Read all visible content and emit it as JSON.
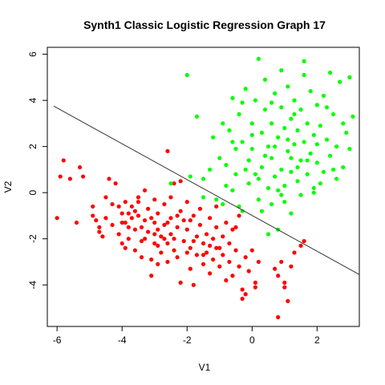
{
  "chart_data": {
    "type": "scatter",
    "title": "Synth1 Classic Logistic Regression Graph 17",
    "xlabel": "V1",
    "ylabel": "V2",
    "xlim": [
      -6.3,
      3.3
    ],
    "ylim": [
      -5.8,
      6.3
    ],
    "xticks": [
      -6,
      -4,
      -2,
      0,
      2
    ],
    "yticks": [
      -4,
      -2,
      0,
      2,
      4,
      6
    ],
    "x_tick_labels": [
      "-6",
      "-4",
      "-2",
      "0",
      "2"
    ],
    "y_tick_labels": [
      "-4",
      "-2",
      "0",
      "2",
      "4",
      "6"
    ],
    "grid": false,
    "legend": "none",
    "decision_boundary": {
      "x": [
        -6.1,
        3.3
      ],
      "y": [
        3.75,
        -3.55
      ],
      "color": "#333333"
    },
    "series": [
      {
        "color": "#ff0000",
        "points": [
          [
            -6.0,
            -1.1
          ],
          [
            -5.9,
            0.7
          ],
          [
            -5.8,
            1.4
          ],
          [
            -5.6,
            0.6
          ],
          [
            -5.4,
            -1.3
          ],
          [
            -5.3,
            1.1
          ],
          [
            -5.2,
            0.7
          ],
          [
            -4.9,
            -0.6
          ],
          [
            -4.8,
            -1.2
          ],
          [
            -4.7,
            -1.5
          ],
          [
            -4.6,
            -1.9
          ],
          [
            -4.5,
            -1.1
          ],
          [
            -4.5,
            -0.2
          ],
          [
            -4.4,
            0.6
          ],
          [
            -4.3,
            -1.4
          ],
          [
            -4.2,
            0.4
          ],
          [
            -4.1,
            -0.6
          ],
          [
            -4.1,
            -1.8
          ],
          [
            -4.0,
            -0.9
          ],
          [
            -4.0,
            -2.2
          ],
          [
            -3.9,
            -1.3
          ],
          [
            -3.9,
            -0.4
          ],
          [
            -3.8,
            -0.9
          ],
          [
            -3.8,
            -2.0
          ],
          [
            -3.7,
            -1.1
          ],
          [
            -3.7,
            -0.6
          ],
          [
            -3.6,
            -1.6
          ],
          [
            -3.6,
            -2.5
          ],
          [
            -3.5,
            -0.4
          ],
          [
            -3.5,
            -1.0
          ],
          [
            -3.4,
            -1.5
          ],
          [
            -3.4,
            -2.8
          ],
          [
            -3.3,
            0.1
          ],
          [
            -3.3,
            -1.2
          ],
          [
            -3.3,
            -2.0
          ],
          [
            -3.2,
            -0.7
          ],
          [
            -3.2,
            -1.7
          ],
          [
            -3.1,
            -2.9
          ],
          [
            -3.1,
            -3.6
          ],
          [
            -3.0,
            -0.3
          ],
          [
            -3.0,
            -1.3
          ],
          [
            -3.0,
            -2.2
          ],
          [
            -2.9,
            -3.1
          ],
          [
            -2.9,
            -0.9
          ],
          [
            -2.8,
            -1.9
          ],
          [
            -2.8,
            -2.6
          ],
          [
            -2.7,
            -0.5
          ],
          [
            -2.7,
            -1.4
          ],
          [
            -2.6,
            -2.2
          ],
          [
            -2.6,
            -3.0
          ],
          [
            -2.5,
            -0.2
          ],
          [
            -2.5,
            -1.1
          ],
          [
            -2.5,
            -1.8
          ],
          [
            -2.4,
            -2.5
          ],
          [
            -2.4,
            0.4
          ],
          [
            -2.3,
            -1.5
          ],
          [
            -2.3,
            -2.8
          ],
          [
            -2.2,
            -0.8
          ],
          [
            -2.2,
            -3.9
          ],
          [
            -2.1,
            -1.2
          ],
          [
            -2.1,
            -2.1
          ],
          [
            -2.0,
            -0.4
          ],
          [
            -2.0,
            -1.6
          ],
          [
            -1.9,
            -2.4
          ],
          [
            -1.9,
            -3.3
          ],
          [
            -1.8,
            -1.0
          ],
          [
            -1.8,
            -4.0
          ],
          [
            -1.7,
            -1.9
          ],
          [
            -1.7,
            -2.7
          ],
          [
            -1.6,
            -0.7
          ],
          [
            -1.6,
            -1.4
          ],
          [
            -1.5,
            -2.2
          ],
          [
            -1.5,
            -3.1
          ],
          [
            -1.4,
            -1.8
          ],
          [
            -1.4,
            -2.6
          ],
          [
            -1.3,
            -1.1
          ],
          [
            -1.3,
            -3.5
          ],
          [
            -1.2,
            -2.0
          ],
          [
            -1.2,
            -2.9
          ],
          [
            -1.1,
            -1.5
          ],
          [
            -1.1,
            -0.6
          ],
          [
            -1.0,
            -2.4
          ],
          [
            -1.0,
            -3.2
          ],
          [
            -0.9,
            -1.9
          ],
          [
            -0.9,
            -2.7
          ],
          [
            -0.8,
            -1.3
          ],
          [
            -0.8,
            -3.8
          ],
          [
            -0.7,
            -2.2
          ],
          [
            -0.7,
            -3.0
          ],
          [
            -0.6,
            -1.6
          ],
          [
            -0.6,
            -3.6
          ],
          [
            -0.5,
            -2.5
          ],
          [
            -0.4,
            -1.0
          ],
          [
            -0.4,
            -3.2
          ],
          [
            -0.3,
            -4.2
          ],
          [
            -0.3,
            -4.6
          ],
          [
            -0.2,
            -2.8
          ],
          [
            -0.2,
            -4.4
          ],
          [
            -0.1,
            -3.4
          ],
          [
            0.0,
            -2.5
          ],
          [
            0.1,
            -3.9
          ],
          [
            0.1,
            -4.1
          ],
          [
            0.2,
            -3.0
          ],
          [
            0.7,
            -3.3
          ],
          [
            0.8,
            -3.6
          ],
          [
            0.8,
            -5.4
          ],
          [
            0.9,
            -3.0
          ],
          [
            1.0,
            -3.9
          ],
          [
            1.0,
            -4.1
          ],
          [
            1.1,
            -4.7
          ],
          [
            1.2,
            -3.2
          ],
          [
            1.3,
            -2.6
          ],
          [
            1.5,
            -2.3
          ],
          [
            1.6,
            -2.1
          ],
          [
            -2.6,
            1.8
          ],
          [
            -2.9,
            -2.3
          ],
          [
            -2.2,
            0.5
          ],
          [
            -3.5,
            -0.2
          ],
          [
            -4.3,
            -0.5
          ],
          [
            -3.8,
            -1.5
          ],
          [
            -2.7,
            -2.0
          ],
          [
            -1.9,
            -1.2
          ],
          [
            -4.7,
            -1.7
          ],
          [
            -3.1,
            -1.1
          ],
          [
            -2.3,
            -1.0
          ],
          [
            -1.5,
            -2.7
          ],
          [
            -1.1,
            -2.4
          ],
          [
            -3.9,
            -2.4
          ],
          [
            -2.9,
            -1.6
          ],
          [
            -2.0,
            -2.6
          ],
          [
            -3.4,
            -2.1
          ],
          [
            -2.6,
            -1.3
          ],
          [
            -4.9,
            -1.0
          ],
          [
            -3.6,
            -0.8
          ],
          [
            -1.8,
            -2.1
          ],
          [
            -3.0,
            -1.8
          ],
          [
            -2.4,
            -2.0
          ],
          [
            -1.3,
            -2.3
          ],
          [
            -0.5,
            -1.5
          ],
          [
            -4.0,
            -1.3
          ]
        ]
      },
      {
        "color": "#00ff00",
        "points": [
          [
            -2.0,
            5.1
          ],
          [
            -1.7,
            3.3
          ],
          [
            -1.5,
            0.6
          ],
          [
            -1.5,
            -0.2
          ],
          [
            -1.2,
            2.4
          ],
          [
            -1.0,
            1.5
          ],
          [
            -0.9,
            3.0
          ],
          [
            -0.8,
            1.2
          ],
          [
            -0.8,
            0.3
          ],
          [
            -0.7,
            2.7
          ],
          [
            -0.6,
            4.1
          ],
          [
            -0.5,
            1.9
          ],
          [
            -0.5,
            0.8
          ],
          [
            -0.4,
            3.4
          ],
          [
            -0.3,
            2.2
          ],
          [
            -0.3,
            -0.8
          ],
          [
            -0.2,
            4.5
          ],
          [
            -0.1,
            1.4
          ],
          [
            -0.1,
            0.4
          ],
          [
            0.0,
            3.0
          ],
          [
            0.0,
            1.9
          ],
          [
            0.1,
            0.8
          ],
          [
            0.1,
            4.0
          ],
          [
            0.2,
            5.8
          ],
          [
            0.2,
            -0.3
          ],
          [
            0.3,
            2.6
          ],
          [
            0.3,
            1.1
          ],
          [
            0.4,
            3.6
          ],
          [
            0.4,
            4.9
          ],
          [
            0.5,
            0.2
          ],
          [
            0.5,
            2.0
          ],
          [
            0.6,
            3.0
          ],
          [
            0.6,
            1.5
          ],
          [
            0.7,
            4.3
          ],
          [
            0.7,
            0.7
          ],
          [
            0.8,
            2.4
          ],
          [
            0.8,
            -1.6
          ],
          [
            0.9,
            3.7
          ],
          [
            0.9,
            1.0
          ],
          [
            1.0,
            2.8
          ],
          [
            1.0,
            0.3
          ],
          [
            1.1,
            4.6
          ],
          [
            1.1,
            1.8
          ],
          [
            1.2,
            3.2
          ],
          [
            1.2,
            0.9
          ],
          [
            1.3,
            2.1
          ],
          [
            1.3,
            4.0
          ],
          [
            1.4,
            0.5
          ],
          [
            1.4,
            2.7
          ],
          [
            1.5,
            3.6
          ],
          [
            1.5,
            1.4
          ],
          [
            1.6,
            5.7
          ],
          [
            1.6,
            2.2
          ],
          [
            1.7,
            0.8
          ],
          [
            1.7,
            3.0
          ],
          [
            1.8,
            4.4
          ],
          [
            1.8,
            1.7
          ],
          [
            1.9,
            2.5
          ],
          [
            1.9,
            0.2
          ],
          [
            2.0,
            3.8
          ],
          [
            2.0,
            1.3
          ],
          [
            2.1,
            2.9
          ],
          [
            2.2,
            4.2
          ],
          [
            2.2,
            0.9
          ],
          [
            2.3,
            2.3
          ],
          [
            2.4,
            5.2
          ],
          [
            2.4,
            1.6
          ],
          [
            2.5,
            3.4
          ],
          [
            2.6,
            0.6
          ],
          [
            2.6,
            2.0
          ],
          [
            2.7,
            4.8
          ],
          [
            2.8,
            1.1
          ],
          [
            2.9,
            2.6
          ],
          [
            3.0,
            5.0
          ],
          [
            3.0,
            1.9
          ],
          [
            3.1,
            3.3
          ],
          [
            -2.5,
            0.4
          ],
          [
            -1.9,
            0.7
          ],
          [
            -1.3,
            1.0
          ],
          [
            -1.1,
            -0.3
          ],
          [
            -0.6,
            0.1
          ],
          [
            0.3,
            -0.8
          ],
          [
            0.5,
            -1.8
          ],
          [
            1.2,
            -0.9
          ],
          [
            -0.4,
            -0.6
          ],
          [
            0.6,
            -0.5
          ],
          [
            -0.9,
            -0.5
          ],
          [
            0.9,
            -0.1
          ],
          [
            0.2,
            0.6
          ],
          [
            1.5,
            -0.1
          ],
          [
            0.8,
            0.1
          ],
          [
            1.9,
            0.0
          ],
          [
            -0.2,
            1.0
          ],
          [
            1.0,
            -0.4
          ],
          [
            1.4,
            1.1
          ],
          [
            2.1,
            0.4
          ],
          [
            0.4,
            1.6
          ],
          [
            1.7,
            1.4
          ],
          [
            1.1,
            2.3
          ],
          [
            0.0,
            2.5
          ],
          [
            -0.6,
            2.2
          ],
          [
            1.3,
            3.4
          ],
          [
            0.6,
            3.9
          ],
          [
            2.3,
            3.7
          ],
          [
            0.9,
            5.3
          ],
          [
            1.6,
            5.1
          ],
          [
            -0.3,
            3.9
          ],
          [
            2.0,
            2.1
          ],
          [
            2.5,
            1.0
          ],
          [
            0.7,
            2.0
          ],
          [
            1.2,
            1.5
          ],
          [
            2.8,
            3.0
          ]
        ]
      }
    ]
  }
}
